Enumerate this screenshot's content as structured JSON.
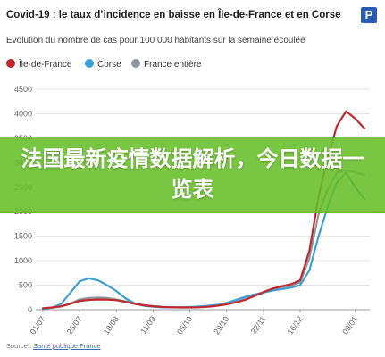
{
  "header": {
    "title": "Covid-19 : le taux d’incidence en baisse en Île-de-France et en Corse",
    "subtitle": "Evolution du nombre de cas pour 100 000 habitants sur la semaine écoulée",
    "logo_letter": "P"
  },
  "banner": {
    "text": "法国最新疫情数据解析，今日数据一览表"
  },
  "source": {
    "prefix": "Source : ",
    "link_text": "Santé publique France"
  },
  "colors": {
    "ile_de_france": "#c0282e",
    "corse": "#3d9fd6",
    "france_entiere": "#8f979e",
    "banner": "#66be28"
  },
  "chart_data": {
    "type": "line",
    "title": "Covid-19 : le taux d’incidence en baisse en Île-de-France et en Corse",
    "subtitle": "Evolution du nombre de cas pour 100 000 habitants sur la semaine écoulée",
    "xlabel": "",
    "ylabel": "",
    "ylim": [
      0,
      4500
    ],
    "yticks": [
      0,
      500,
      1000,
      1500,
      2000,
      2500,
      3000,
      3500,
      4000,
      4500
    ],
    "x_tick_labels": [
      "01/07",
      "25/07",
      "18/08",
      "11/09",
      "05/10",
      "29/10",
      "22/11",
      "16/12",
      "09/01"
    ],
    "grid": true,
    "legend_position": "top-left",
    "x": [
      "01/07",
      "07/07",
      "13/07",
      "19/07",
      "25/07",
      "31/07",
      "06/08",
      "12/08",
      "18/08",
      "24/08",
      "30/08",
      "05/09",
      "11/09",
      "17/09",
      "23/09",
      "29/09",
      "05/10",
      "11/10",
      "17/10",
      "23/10",
      "29/10",
      "04/11",
      "10/11",
      "16/11",
      "22/11",
      "28/11",
      "04/12",
      "10/12",
      "16/12",
      "22/12",
      "28/12",
      "31/12",
      "03/01",
      "06/01",
      "09/01",
      "12/01"
    ],
    "series": [
      {
        "name": "Île-de-France",
        "color": "#c0282e",
        "values": [
          30,
          45,
          70,
          120,
          180,
          200,
          210,
          205,
          195,
          160,
          120,
          90,
          70,
          55,
          50,
          45,
          45,
          50,
          60,
          80,
          110,
          150,
          200,
          280,
          360,
          430,
          480,
          520,
          600,
          1200,
          2300,
          3100,
          3750,
          4050,
          3900,
          3700
        ]
      },
      {
        "name": "Corse",
        "color": "#3d9fd6",
        "values": [
          20,
          40,
          120,
          350,
          580,
          640,
          600,
          500,
          380,
          230,
          130,
          80,
          60,
          50,
          50,
          50,
          55,
          65,
          80,
          100,
          140,
          200,
          260,
          310,
          350,
          390,
          420,
          450,
          500,
          800,
          1500,
          2100,
          2600,
          2800,
          2500,
          2250
        ]
      },
      {
        "name": "France entière",
        "color": "#8f979e",
        "values": [
          25,
          40,
          65,
          130,
          210,
          240,
          250,
          240,
          210,
          170,
          130,
          95,
          75,
          60,
          55,
          50,
          50,
          55,
          65,
          85,
          120,
          165,
          215,
          280,
          350,
          410,
          460,
          490,
          560,
          1050,
          1950,
          2450,
          2800,
          2850,
          2800,
          2750
        ]
      }
    ]
  }
}
